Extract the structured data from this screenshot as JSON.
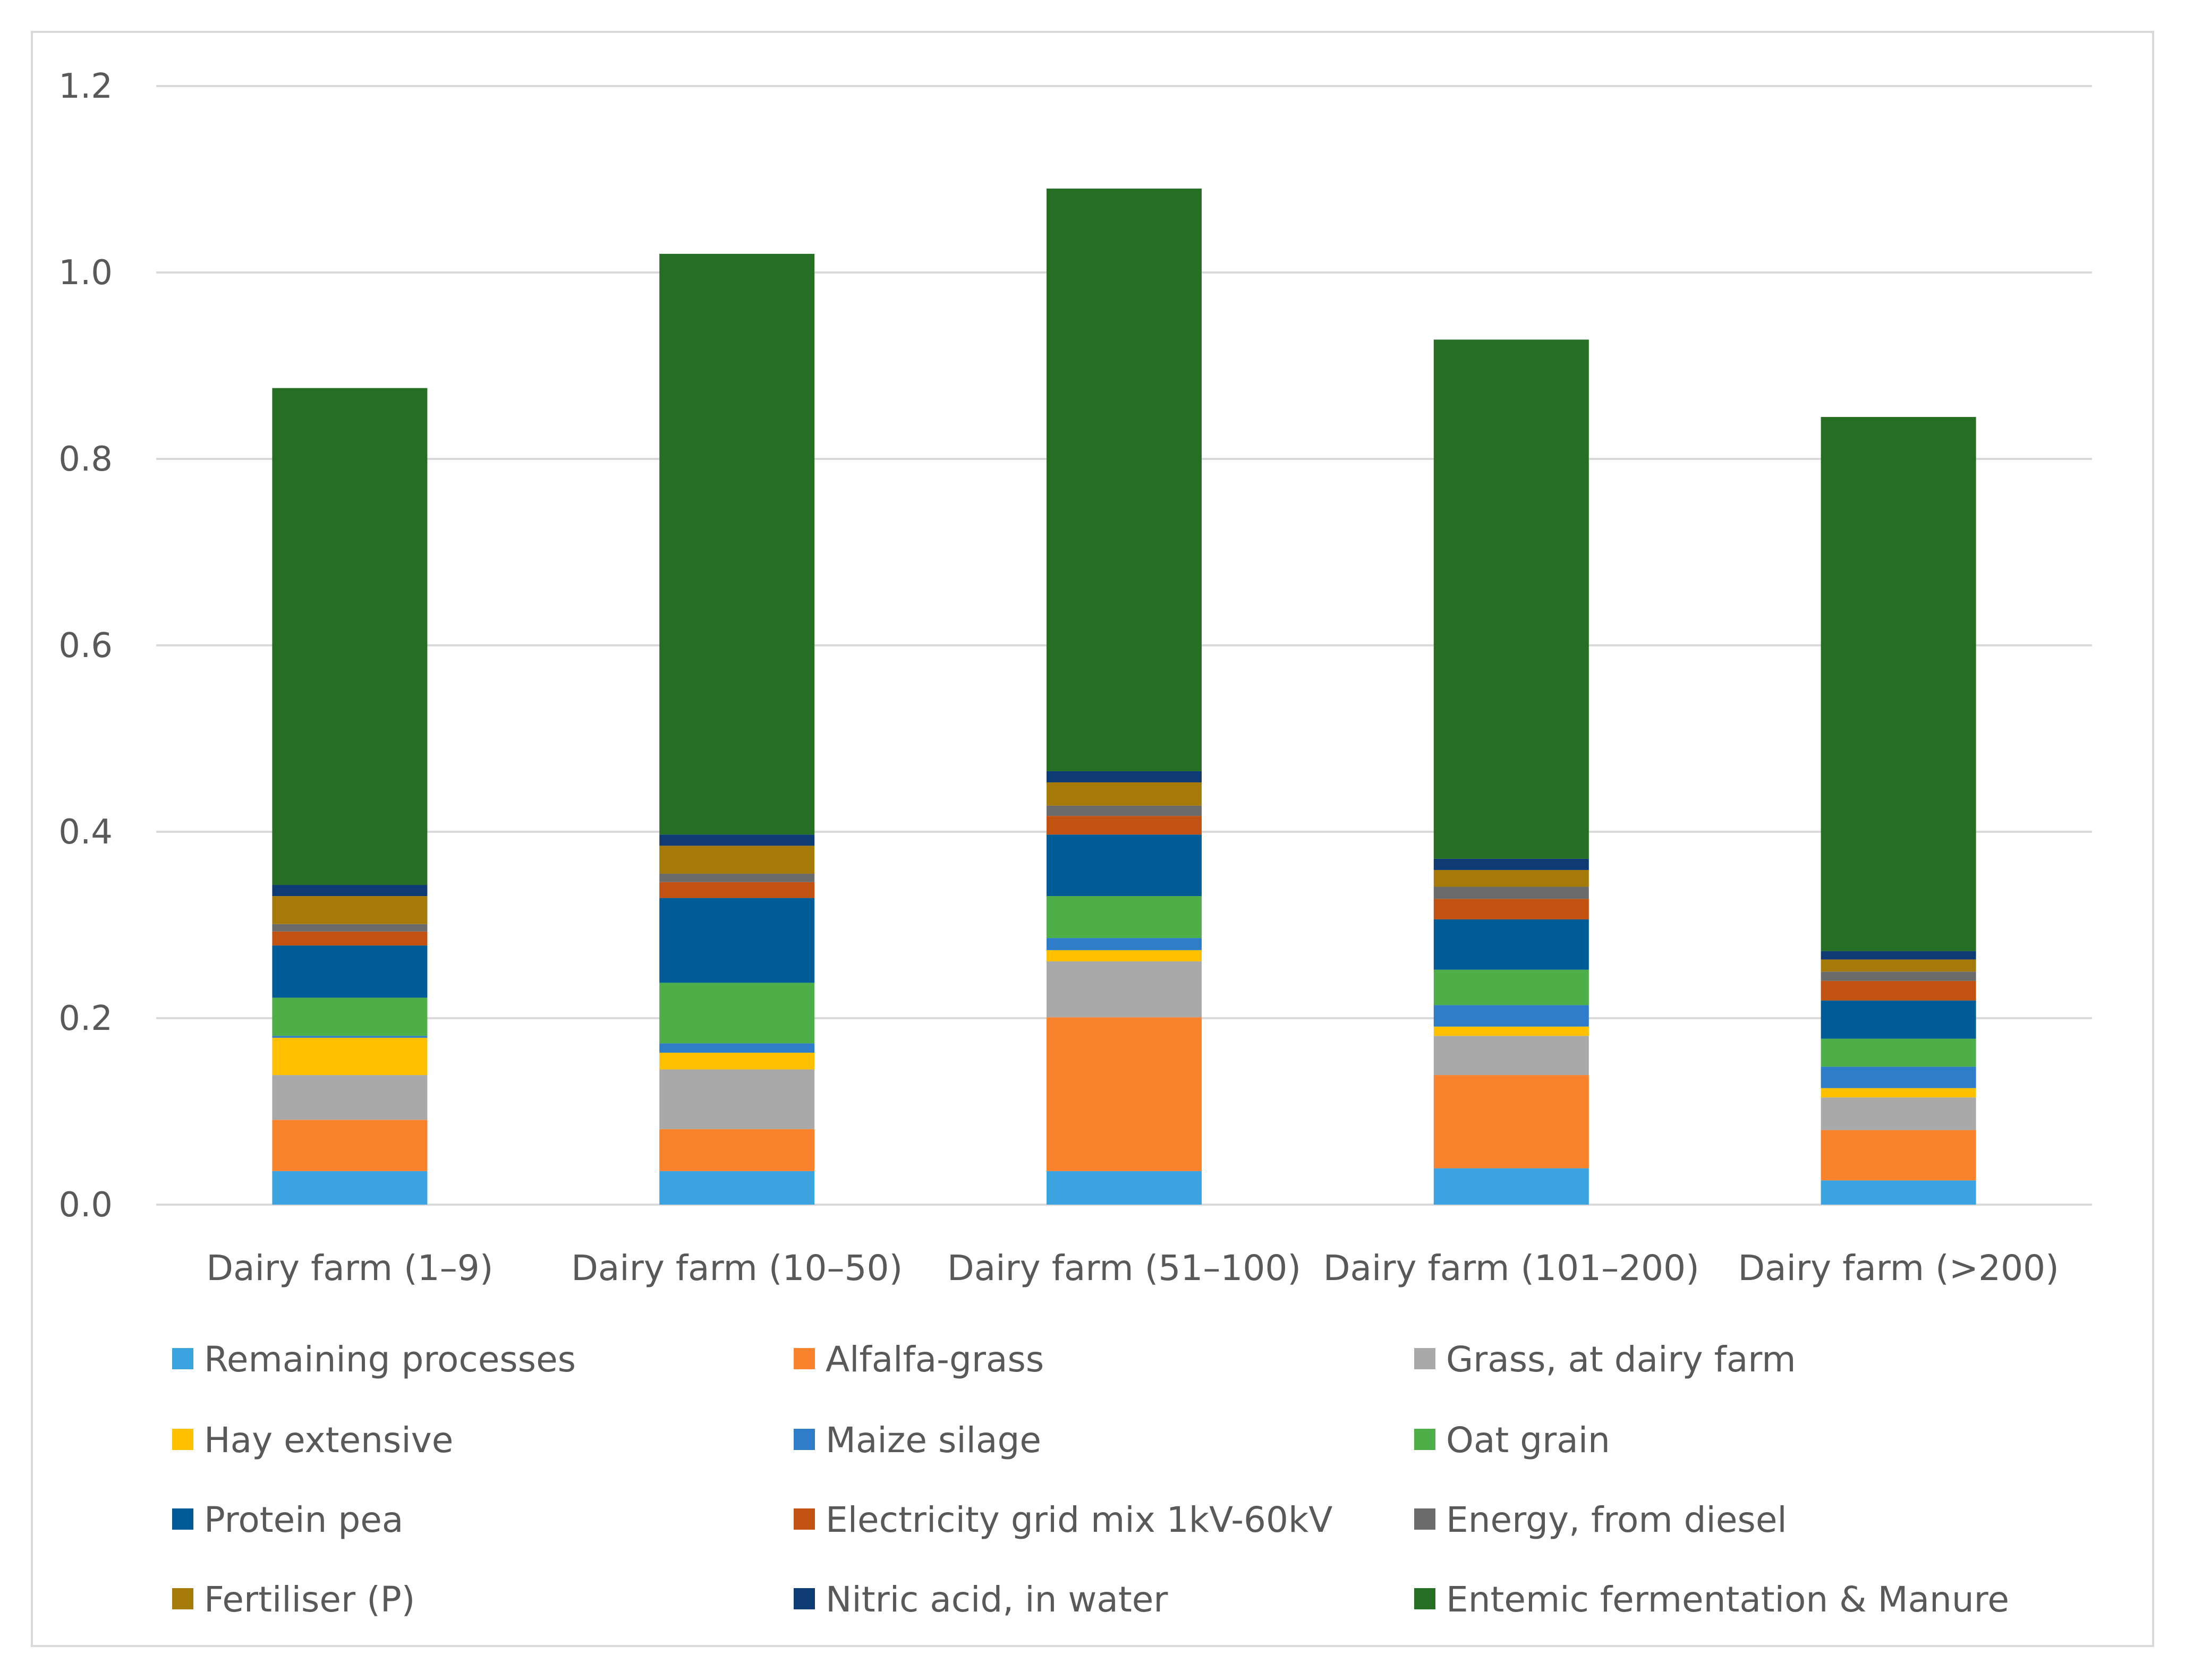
{
  "chart_data": {
    "type": "bar",
    "stacked": true,
    "title": "",
    "xlabel": "",
    "ylabel": "",
    "ylim": [
      0,
      1.2
    ],
    "y_ticks": [
      {
        "value": 0.0,
        "label": "0.0"
      },
      {
        "value": 0.2,
        "label": "0.2"
      },
      {
        "value": 0.4,
        "label": "0.4"
      },
      {
        "value": 0.6,
        "label": "0.6"
      },
      {
        "value": 0.8,
        "label": "0.8"
      },
      {
        "value": 1.0,
        "label": "1.0"
      },
      {
        "value": 1.2,
        "label": "1.2"
      }
    ],
    "grid": true,
    "legend_position": "bottom",
    "categories": [
      "Dairy farm (1–9)",
      "Dairy farm (10–50)",
      "Dairy farm (51–100)",
      "Dairy farm (101–200)",
      "Dairy farm (>200)"
    ],
    "series": [
      {
        "name": "Remaining processes",
        "color": "#3aa3e0",
        "values": [
          0.036,
          0.036,
          0.036,
          0.039,
          0.026
        ]
      },
      {
        "name": "Alfalfa-grass",
        "color": "#f9822c",
        "values": [
          0.055,
          0.045,
          0.165,
          0.1,
          0.054
        ]
      },
      {
        "name": "Grass, at dairy farm",
        "color": "#a9a9a9",
        "values": [
          0.048,
          0.064,
          0.06,
          0.042,
          0.035
        ]
      },
      {
        "name": "Hay extensive",
        "color": "#ffc000",
        "values": [
          0.04,
          0.018,
          0.012,
          0.01,
          0.01
        ]
      },
      {
        "name": "Maize silage",
        "color": "#2f7dc9",
        "values": [
          0.002,
          0.01,
          0.013,
          0.023,
          0.023
        ]
      },
      {
        "name": "Oat grain",
        "color": "#4eae48",
        "values": [
          0.041,
          0.065,
          0.045,
          0.038,
          0.03
        ]
      },
      {
        "name": "Protein pea",
        "color": "#005c96",
        "values": [
          0.056,
          0.091,
          0.066,
          0.054,
          0.041
        ]
      },
      {
        "name": "Electricity grid mix 1kV-60kV",
        "color": "#c25211",
        "values": [
          0.015,
          0.017,
          0.02,
          0.022,
          0.021
        ]
      },
      {
        "name": "Energy, from diesel",
        "color": "#6b6b6b",
        "values": [
          0.008,
          0.009,
          0.011,
          0.013,
          0.01
        ]
      },
      {
        "name": "Fertiliser (P)",
        "color": "#a57a08",
        "values": [
          0.03,
          0.03,
          0.025,
          0.018,
          0.013
        ]
      },
      {
        "name": "Nitric acid, in water",
        "color": "#0f3b75",
        "values": [
          0.012,
          0.012,
          0.012,
          0.012,
          0.009
        ]
      },
      {
        "name": "Entemic fermentation & Manure",
        "color": "#276e25",
        "values": [
          0.533,
          0.623,
          0.625,
          0.557,
          0.573
        ]
      }
    ]
  }
}
